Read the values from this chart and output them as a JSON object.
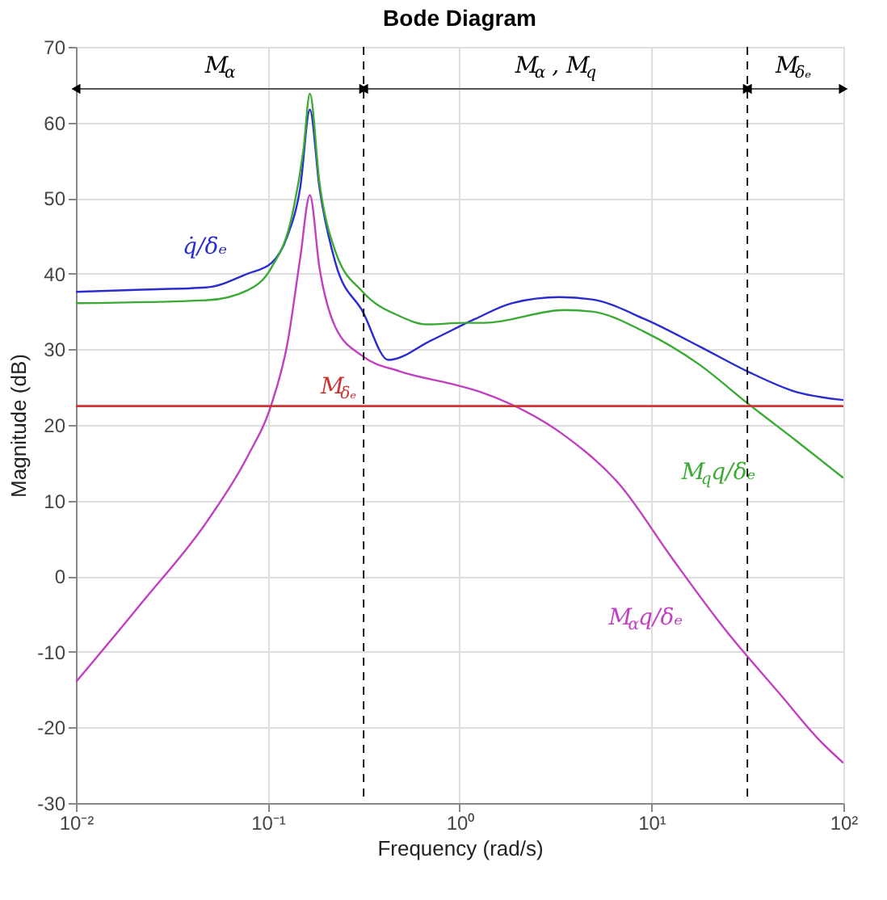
{
  "chart_data": {
    "type": "line",
    "title": "Bode Diagram",
    "xlabel": "Frequency  (rad/s)",
    "ylabel": "Magnitude (dB)",
    "log": "x",
    "grid": true,
    "line_style": "solid",
    "xlim": [
      0.01,
      100
    ],
    "xticks": [
      {
        "value": 0.01,
        "label": "10⁻²"
      },
      {
        "value": 0.1,
        "label": "10⁻¹"
      },
      {
        "value": 1,
        "label": "10⁰"
      },
      {
        "value": 10,
        "label": "10¹"
      },
      {
        "value": 100,
        "label": "10²"
      }
    ],
    "ylim": [
      -30,
      70
    ],
    "yticks": [
      -30,
      -20,
      -10,
      0,
      10,
      20,
      30,
      40,
      50,
      60,
      70
    ],
    "series": [
      {
        "name": "q̇/δₑ",
        "color": "#2b2bd0",
        "x": [
          0.01,
          0.0224,
          0.0484,
          0.0783,
          0.1044,
          0.1266,
          0.1476,
          0.1657,
          0.1859,
          0.2254,
          0.3124,
          0.425,
          0.714,
          1.2,
          1.868,
          3.326,
          4.886,
          9.21,
          17.72,
          31.55,
          56.2,
          100
        ],
        "values": [
          37.6,
          37.9,
          38.2,
          40.0,
          41.4,
          45.0,
          51.4,
          61.7,
          51.4,
          41.4,
          35.0,
          28.6,
          31.2,
          34.0,
          36.1,
          36.9,
          36.6,
          34.0,
          30.4,
          27.1,
          24.4,
          23.3
        ]
      },
      {
        "name": "M$_{q}$q/δₑ",
        "color": "#3aaa35",
        "x": [
          0.01,
          0.0484,
          0.0783,
          0.1044,
          0.1341,
          0.1534,
          0.1657,
          0.1859,
          0.2254,
          0.3124,
          0.4863,
          0.674,
          1.049,
          1.347,
          3.524,
          4.886,
          9.21,
          17.72,
          31.55,
          56.2,
          100
        ],
        "values": [
          36.1,
          36.5,
          37.8,
          40.8,
          47.8,
          56.4,
          63.8,
          52.1,
          42.9,
          37.6,
          34.4,
          33.3,
          33.5,
          33.5,
          35.2,
          35.0,
          32.3,
          28.0,
          22.9,
          18.0,
          13.0
        ]
      },
      {
        "name": "M$_{α}$q/δₑ",
        "color": "#c040c0",
        "x": [
          0.01,
          0.0224,
          0.0484,
          0.0783,
          0.1044,
          0.1266,
          0.1476,
          0.1657,
          0.1859,
          0.2254,
          0.3124,
          0.4863,
          0.917,
          1.272,
          1.868,
          3.524,
          6.776,
          12.78,
          24.1,
          46.4,
          76.4,
          100
        ],
        "values": [
          -14.0,
          -3.3,
          7.3,
          15.8,
          22.7,
          30.8,
          42.1,
          50.4,
          40.8,
          32.9,
          29.1,
          27.1,
          25.4,
          24.4,
          22.7,
          18.6,
          12.2,
          2.4,
          -7.0,
          -15.5,
          -21.9,
          -24.7
        ]
      }
    ],
    "ref_lines": [
      {
        "axis": "y",
        "value": 22.5,
        "label": "M$_{δₑ}$",
        "color": "#cc3333",
        "line_style": "solid"
      },
      {
        "axis": "x",
        "value": 0.316,
        "color": "#000000",
        "line_style": "dashed"
      },
      {
        "axis": "x",
        "value": 31.6,
        "color": "#000000",
        "line_style": "dashed"
      }
    ],
    "annotations": [
      "M$_{α}$",
      "M$_{α}$ , M$_{q}$",
      "M$_{δₑ}$"
    ]
  }
}
